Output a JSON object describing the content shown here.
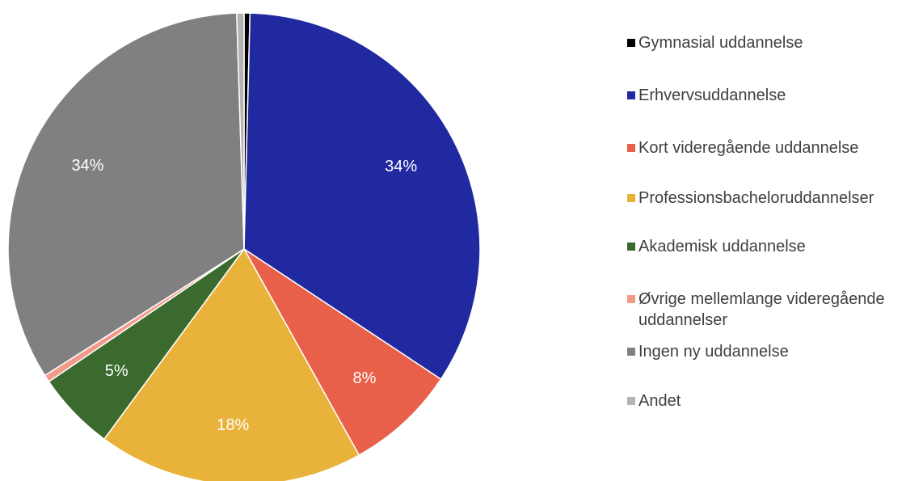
{
  "chart_data": {
    "type": "pie",
    "categories": [
      "Gymnasial uddannelse",
      "Erhvervsuddannelse",
      "Kort videregående uddannelse",
      "Professionsbacheloruddannelser",
      "Akademisk uddannelse",
      "Øvrige mellemlange videregående uddannelser",
      "Ingen ny uddannelse",
      "Andet"
    ],
    "values": [
      0.4,
      33.9,
      7.6,
      18.2,
      5.4,
      0.5,
      33.5,
      0.5
    ],
    "value_labels": [
      null,
      "34%",
      "8%",
      "18%",
      "5%",
      null,
      "34%",
      null
    ],
    "colors": [
      "#000000",
      "#2129a0",
      "#e8604a",
      "#e9b33b",
      "#3a6a2d",
      "#f29a8a",
      "#808080",
      "#b3b3b3"
    ],
    "legend": "right"
  }
}
